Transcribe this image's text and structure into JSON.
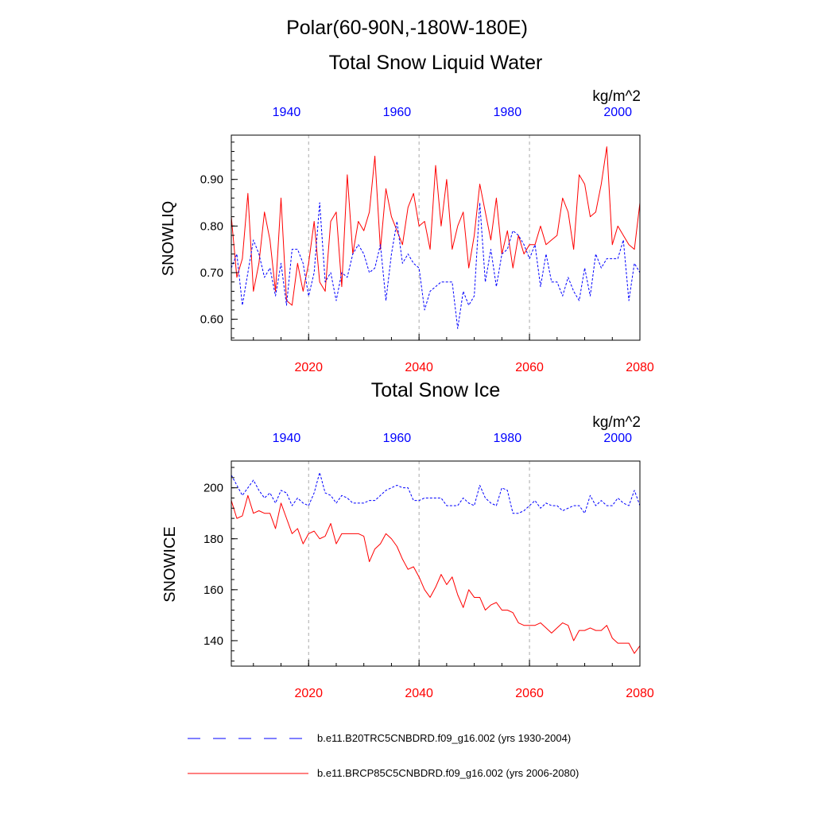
{
  "header": {
    "region": "Polar(60-90N,-180W-180E)"
  },
  "colors": {
    "rcp": "#ff0000",
    "hist": "#0000ff",
    "grid": "#aaaaaa",
    "axis": "#000000"
  },
  "legend": {
    "hist_label": "b.e11.B20TRC5CNBDRD.f09_g16.002 (yrs 1930-2004)",
    "rcp_label": "b.e11.BRCP85C5CNBDRD.f09_g16.002 (yrs 2006-2080)"
  },
  "chart_data": [
    {
      "type": "line",
      "title": "Total Snow Liquid Water",
      "ylabel": "SNOWLIQ",
      "units": "kg/m^2",
      "ylim": [
        0.555,
        0.995
      ],
      "yticks": [
        0.6,
        0.7,
        0.8,
        0.9
      ],
      "ytick_labels": [
        "0.60",
        "0.70",
        "0.80",
        "0.90"
      ],
      "y_minor_step": 0.02,
      "x_bottom": {
        "range": [
          2006,
          2080
        ],
        "ticks": [
          2020,
          2040,
          2060,
          2080
        ],
        "tick_labels": [
          "2020",
          "2040",
          "2060",
          "2080"
        ],
        "minor_step": 5
      },
      "x_top": {
        "range": [
          1930,
          2004
        ],
        "ticks": [
          1940,
          1960,
          1980,
          2000
        ],
        "tick_labels": [
          "1940",
          "1960",
          "1980",
          "2000"
        ]
      },
      "series": [
        {
          "name": "b.e11.BRCP85C5CNBDRD.f09_g16.002 (yrs 2006-2080)",
          "axis": "bottom",
          "style": "solid",
          "x_start": 2006,
          "values": [
            0.82,
            0.69,
            0.73,
            0.87,
            0.66,
            0.72,
            0.83,
            0.77,
            0.66,
            0.86,
            0.64,
            0.63,
            0.72,
            0.66,
            0.72,
            0.81,
            0.68,
            0.66,
            0.81,
            0.83,
            0.67,
            0.91,
            0.74,
            0.81,
            0.79,
            0.83,
            0.95,
            0.75,
            0.88,
            0.82,
            0.79,
            0.76,
            0.84,
            0.87,
            0.8,
            0.81,
            0.75,
            0.93,
            0.8,
            0.9,
            0.75,
            0.8,
            0.83,
            0.71,
            0.78,
            0.89,
            0.83,
            0.77,
            0.86,
            0.74,
            0.79,
            0.71,
            0.78,
            0.74,
            0.76,
            0.76,
            0.8,
            0.76,
            0.77,
            0.78,
            0.86,
            0.83,
            0.75,
            0.91,
            0.89,
            0.82,
            0.83,
            0.89,
            0.97,
            0.76,
            0.8,
            0.78,
            0.76,
            0.75,
            0.85
          ]
        },
        {
          "name": "b.e11.B20TRC5CNBDRD.f09_g16.002 (yrs 1930-2004)",
          "axis": "top",
          "style": "dashed",
          "x_start": 1930,
          "values": [
            0.71,
            0.74,
            0.63,
            0.7,
            0.77,
            0.74,
            0.69,
            0.71,
            0.65,
            0.72,
            0.63,
            0.75,
            0.75,
            0.72,
            0.65,
            0.7,
            0.85,
            0.68,
            0.7,
            0.64,
            0.7,
            0.69,
            0.74,
            0.76,
            0.74,
            0.7,
            0.71,
            0.76,
            0.64,
            0.74,
            0.81,
            0.72,
            0.74,
            0.72,
            0.71,
            0.62,
            0.66,
            0.67,
            0.68,
            0.68,
            0.68,
            0.58,
            0.66,
            0.63,
            0.65,
            0.85,
            0.68,
            0.75,
            0.67,
            0.74,
            0.75,
            0.79,
            0.78,
            0.76,
            0.73,
            0.76,
            0.67,
            0.74,
            0.68,
            0.68,
            0.65,
            0.69,
            0.66,
            0.64,
            0.71,
            0.65,
            0.74,
            0.71,
            0.73,
            0.73,
            0.73,
            0.77,
            0.64,
            0.72,
            0.7
          ]
        }
      ]
    },
    {
      "type": "line",
      "title": "Total Snow Ice",
      "ylabel": "SNOWICE",
      "units": "kg/m^2",
      "ylim": [
        130,
        210.5
      ],
      "yticks": [
        140,
        160,
        180,
        200
      ],
      "ytick_labels": [
        "140",
        "160",
        "180",
        "200"
      ],
      "y_minor_step": 4,
      "x_bottom": {
        "range": [
          2006,
          2080
        ],
        "ticks": [
          2020,
          2040,
          2060,
          2080
        ],
        "tick_labels": [
          "2020",
          "2040",
          "2060",
          "2080"
        ],
        "minor_step": 5
      },
      "x_top": {
        "range": [
          1930,
          2004
        ],
        "ticks": [
          1940,
          1960,
          1980,
          2000
        ],
        "tick_labels": [
          "1940",
          "1960",
          "1980",
          "2000"
        ]
      },
      "series": [
        {
          "name": "b.e11.BRCP85C5CNBDRD.f09_g16.002 (yrs 2006-2080)",
          "axis": "bottom",
          "style": "solid",
          "x_start": 2006,
          "values": [
            195,
            188,
            189,
            197,
            190,
            191,
            190,
            190,
            184,
            194,
            188,
            182,
            184,
            178,
            182,
            183,
            180,
            181,
            186,
            178,
            182,
            182,
            182,
            182,
            181,
            171,
            176,
            178,
            182,
            180,
            177,
            172,
            168,
            169,
            165,
            160,
            157,
            161,
            166,
            162,
            165,
            158,
            153,
            160,
            157,
            157,
            152,
            154,
            155,
            152,
            152,
            151,
            147,
            146,
            146,
            146,
            147,
            145,
            143,
            145,
            147,
            146,
            140,
            144,
            144,
            145,
            144,
            144,
            146,
            141,
            139,
            139,
            139,
            135,
            138
          ]
        },
        {
          "name": "b.e11.B20TRC5CNBDRD.f09_g16.002 (yrs 1930-2004)",
          "axis": "top",
          "style": "dashed",
          "x_start": 1930,
          "values": [
            205,
            201,
            197,
            200,
            203,
            199,
            196,
            198,
            194,
            199,
            198,
            193,
            196,
            194,
            193,
            198,
            206,
            198,
            197,
            194,
            197,
            196,
            194,
            194,
            194,
            195,
            195,
            197,
            199,
            200,
            201,
            200,
            200,
            195,
            195,
            196,
            196,
            196,
            196,
            193,
            193,
            193,
            196,
            194,
            193,
            201,
            196,
            194,
            193,
            200,
            199,
            190,
            190,
            191,
            193,
            195,
            192,
            194,
            193,
            193,
            191,
            192,
            193,
            193,
            190,
            197,
            193,
            195,
            193,
            193,
            196,
            194,
            193,
            199,
            193
          ]
        }
      ]
    }
  ]
}
